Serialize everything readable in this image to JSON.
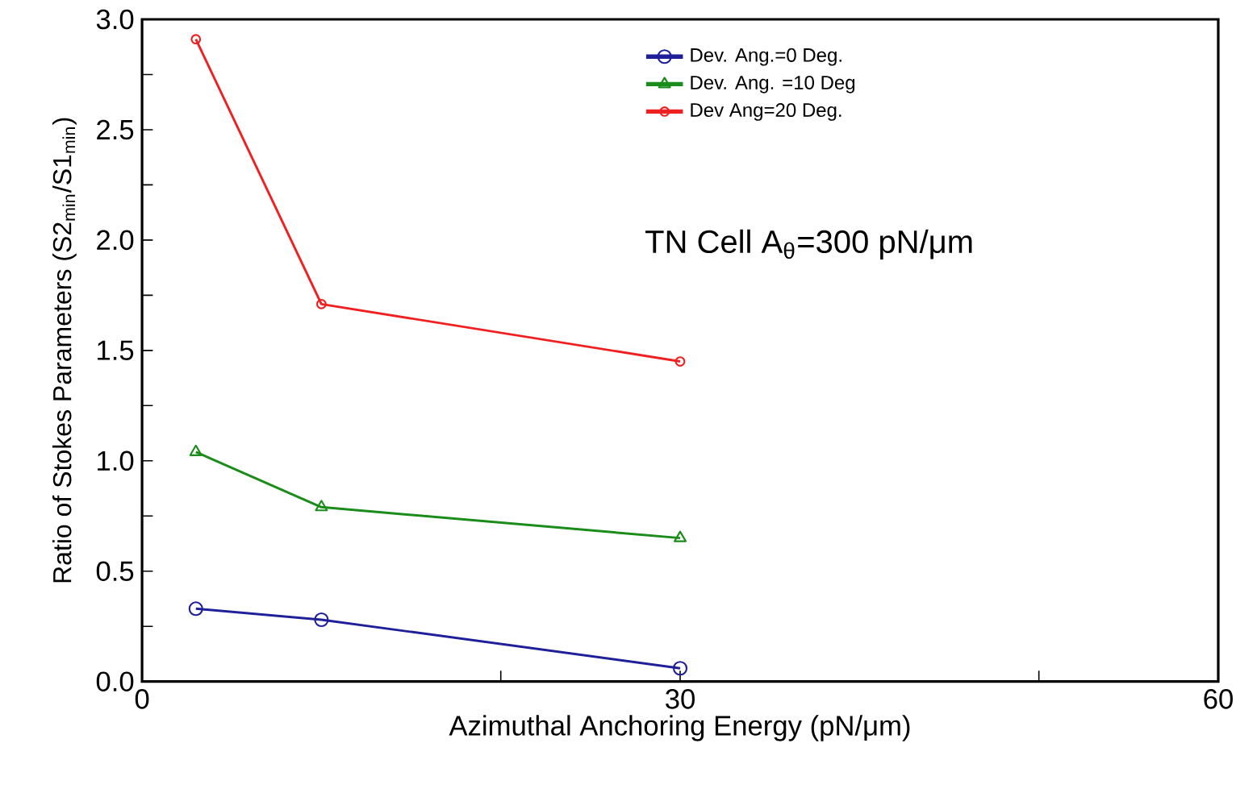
{
  "chart_data": {
    "type": "line",
    "xlabel": "Azimuthal Anchoring Energy (pN/μm)",
    "ylabel": "Ratio of Stokes Parameters (S2$_{min}$/S1$_{min}$)",
    "annotations": [
      "TN Cell A$_{θ}$=300 pN/μm"
    ],
    "xlim": [
      0,
      60
    ],
    "xticks": [
      0,
      {
        "value": 20,
        "label": null
      },
      30,
      {
        "value": 50,
        "label": null
      },
      60
    ],
    "ylim": [
      0,
      3
    ],
    "yticks": [
      {
        "value": 0,
        "label": "0.0"
      },
      {
        "value": 0.25,
        "label": null
      },
      {
        "value": 0.5,
        "label": "0.5"
      },
      {
        "value": 0.75,
        "label": null
      },
      {
        "value": 1,
        "label": "1.0"
      },
      {
        "value": 1.25,
        "label": null
      },
      {
        "value": 1.5,
        "label": "1.5"
      },
      {
        "value": 1.75,
        "label": null
      },
      {
        "value": 2,
        "label": "2.0"
      },
      {
        "value": 2.25,
        "label": null
      },
      {
        "value": 2.5,
        "label": "2.5"
      },
      {
        "value": 2.75,
        "label": null
      },
      {
        "value": 3,
        "label": "3.0"
      }
    ],
    "x": [
      3,
      10,
      30
    ],
    "legend": "top",
    "grid": false,
    "line_style": "solid",
    "series": [
      {
        "name": "Dev. Ang.=0 Deg.",
        "color": "#1f1f9a",
        "marker": "circle",
        "values": [
          0.33,
          0.28,
          0.06
        ]
      },
      {
        "name": "Dev. Ang. =10 Deg",
        "color": "#1a8c1a",
        "marker": "triangle",
        "values": [
          1.04,
          0.79,
          0.65
        ]
      },
      {
        "name": "Dev Ang=20 Deg.",
        "color": "#f02020",
        "marker": "circle",
        "values": [
          2.91,
          1.71,
          1.45
        ]
      }
    ]
  }
}
